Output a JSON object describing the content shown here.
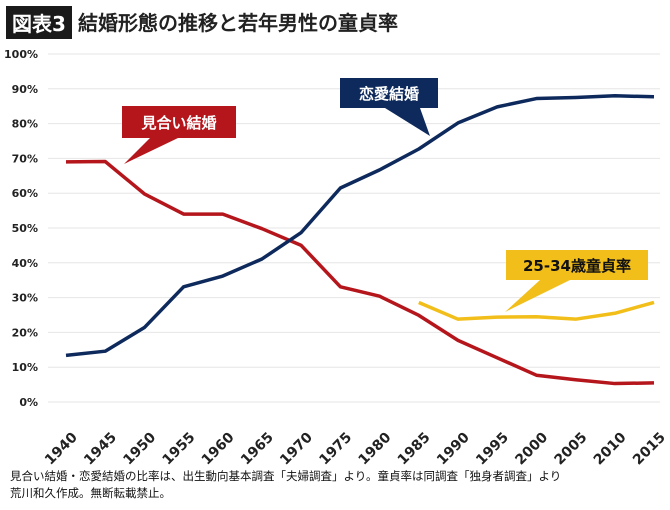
{
  "header": {
    "badge": "図表3",
    "title": "結婚形態の推移と若年男性の童貞率"
  },
  "footnote": {
    "line1": "見合い結婚・恋愛結婚の比率は、出生動向基本調査「夫婦調査」より。童貞率は同調査「独身者調査」より",
    "line2": "荒川和久作成。無断転載禁止。"
  },
  "chart_data": {
    "type": "line",
    "title": "結婚形態の推移と若年男性の童貞率",
    "x": [
      1940,
      1945,
      1950,
      1955,
      1960,
      1965,
      1970,
      1975,
      1980,
      1985,
      1990,
      1995,
      2000,
      2005,
      2010,
      2015
    ],
    "ylim": [
      0,
      100
    ],
    "yticks": [
      "0%",
      "10%",
      "20%",
      "30%",
      "40%",
      "50%",
      "60%",
      "70%",
      "80%",
      "90%",
      "100%"
    ],
    "grid": true,
    "series": [
      {
        "name": "見合い結婚",
        "color": "#b5161c",
        "values": [
          69.0,
          69.1,
          59.8,
          54.0,
          54.0,
          49.8,
          45.0,
          33.1,
          30.4,
          24.9,
          17.7,
          12.7,
          7.7,
          6.4,
          5.3,
          5.5
        ]
      },
      {
        "name": "恋愛結婚",
        "color": "#0e2a5c",
        "values": [
          13.4,
          14.6,
          21.4,
          33.1,
          36.2,
          41.1,
          48.7,
          61.5,
          66.7,
          72.7,
          80.2,
          84.8,
          87.2,
          87.5,
          88.0,
          87.7
        ]
      },
      {
        "name": "25-34歳童貞率",
        "color": "#f2be1a",
        "values": [
          null,
          null,
          null,
          null,
          null,
          null,
          null,
          null,
          null,
          28.6,
          23.8,
          24.4,
          24.5,
          23.8,
          25.5,
          28.6
        ]
      }
    ]
  }
}
